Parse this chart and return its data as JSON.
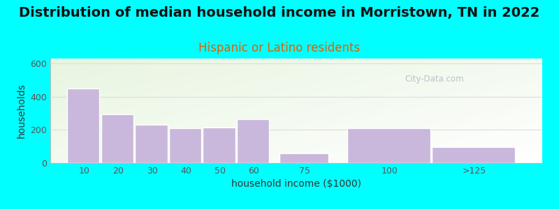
{
  "title": "Distribution of median household income in Morristown, TN in 2022",
  "subtitle": "Hispanic or Latino residents",
  "xlabel": "household income ($1000)",
  "ylabel": "households",
  "categories": [
    "10",
    "20",
    "30",
    "40",
    "50",
    "60",
    "75",
    "100",
    ">125"
  ],
  "bar_lefts": [
    5,
    15,
    25,
    35,
    45,
    55,
    67.5,
    87.5,
    112.5
  ],
  "bar_widths": [
    10,
    10,
    10,
    10,
    10,
    10,
    15,
    25,
    25
  ],
  "values": [
    450,
    295,
    230,
    210,
    215,
    265,
    60,
    210,
    95
  ],
  "bar_color": "#c9b8dc",
  "bar_edge_color": "#ffffff",
  "ylim": [
    0,
    630
  ],
  "yticks": [
    0,
    200,
    400,
    600
  ],
  "xtick_positions": [
    10,
    20,
    30,
    40,
    50,
    60,
    75,
    100,
    125
  ],
  "xtick_labels": [
    "10",
    "20",
    "30",
    "40",
    "50",
    "60",
    "75",
    "100",
    ">125"
  ],
  "xlim": [
    0,
    145
  ],
  "background_outer": "#00ffff",
  "title_fontsize": 14,
  "subtitle_fontsize": 12,
  "subtitle_color": "#e06000",
  "axis_label_fontsize": 10,
  "tick_fontsize": 9,
  "watermark_text": "City-Data.com",
  "watermark_color": "#aabbc5",
  "grid_color": "#dddddd"
}
